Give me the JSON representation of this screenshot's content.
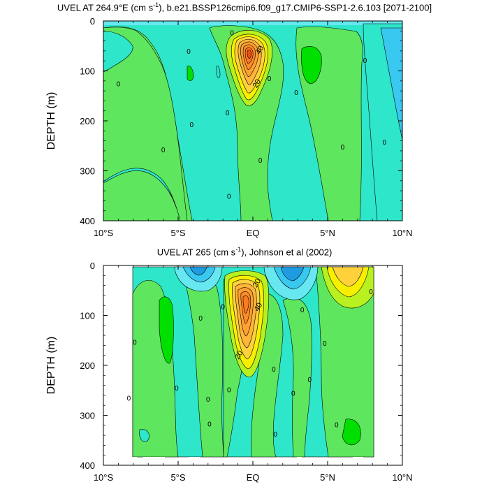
{
  "figure": {
    "panels": [
      {
        "title_pre": "UVEL AT 264.9°E (cm s",
        "title_sup": "-1",
        "title_post": "), b.e21.BSSP126cmip6.f09_g17.CMIP6-SSP1-2.6.103 [2071-2100]",
        "ylabel": "DEPTH (m)"
      },
      {
        "title_pre": "UVEL AT 265 (cm s",
        "title_sup": "-1",
        "title_post": "), Johnson et al (2002)",
        "ylabel": "DEPTH (m)"
      }
    ],
    "colors": {
      "strong_negative": "#1f9ce0",
      "negative": "#38c8f0",
      "weak_negative": "#67e8f0",
      "near_zero": "#2ee6c9",
      "weak_positive": "#5ee65e",
      "positive": "#00e000",
      "moderate": "#b8f020",
      "yellow": "#f6f000",
      "light_orange": "#ffd23c",
      "orange": "#ffa030",
      "dark_orange": "#ff7a20",
      "red": "#f04a18"
    }
  },
  "chart_data": [
    {
      "type": "heatmap",
      "title": "UVEL AT 264.9°E (cm s-1), b.e21.BSSP126cmip6.f09_g17.CMIP6-SSP1-2.6.103 [2071-2100]",
      "xlabel": "",
      "ylabel": "DEPTH (m)",
      "x_ticks": [
        "10°S",
        "5°S",
        "EQ",
        "5°N",
        "10°N"
      ],
      "x_tick_values": [
        -10,
        -5,
        0,
        5,
        10
      ],
      "y_ticks": [
        0,
        100,
        200,
        300,
        400
      ],
      "xlim": [
        -10,
        10
      ],
      "ylim": [
        0,
        400
      ],
      "y_inverted": true,
      "contour_labels": [
        {
          "text": "0",
          "x": -9.0,
          "y": 125
        },
        {
          "text": "0",
          "x": -4.3,
          "y": 60
        },
        {
          "text": "0",
          "x": -4.1,
          "y": 207
        },
        {
          "text": "0",
          "x": -6.0,
          "y": 257
        },
        {
          "text": "0",
          "x": -1.4,
          "y": 23
        },
        {
          "text": "0",
          "x": -1.7,
          "y": 183
        },
        {
          "text": "0",
          "x": -1.6,
          "y": 350
        },
        {
          "text": "0",
          "x": 1.1,
          "y": 115
        },
        {
          "text": "0",
          "x": 0.5,
          "y": 278
        },
        {
          "text": "0",
          "x": 2.9,
          "y": 143
        },
        {
          "text": "0",
          "x": 6.0,
          "y": 252
        },
        {
          "text": "0",
          "x": 7.5,
          "y": 78
        },
        {
          "text": "0",
          "x": 8.8,
          "y": 242
        },
        {
          "text": "20",
          "x": 0.4,
          "y": 122
        },
        {
          "text": "40",
          "x": 0.6,
          "y": 55
        }
      ]
    },
    {
      "type": "heatmap",
      "title": "UVEL AT 265 (cm s-1), Johnson et al (2002)",
      "xlabel": "",
      "ylabel": "DEPTH (m)",
      "x_ticks": [
        "10°S",
        "5°S",
        "EQ",
        "5°N",
        "10°N"
      ],
      "x_tick_values": [
        -10,
        -5,
        0,
        5,
        10
      ],
      "y_ticks": [
        0,
        100,
        200,
        300,
        400
      ],
      "xlim": [
        -10,
        10
      ],
      "ylim": [
        0,
        400
      ],
      "y_inverted": true,
      "contour_labels": [
        {
          "text": "0",
          "x": -8.3,
          "y": 265
        },
        {
          "text": "0",
          "x": -7.9,
          "y": 153
        },
        {
          "text": "0",
          "x": -5.1,
          "y": 245
        },
        {
          "text": "0",
          "x": -3.5,
          "y": 105
        },
        {
          "text": "0",
          "x": -3.0,
          "y": 267
        },
        {
          "text": "0",
          "x": -2.9,
          "y": 317
        },
        {
          "text": "0",
          "x": -2.0,
          "y": 82
        },
        {
          "text": "0",
          "x": -1.6,
          "y": 248
        },
        {
          "text": "0",
          "x": 1.4,
          "y": 207
        },
        {
          "text": "0",
          "x": 1.5,
          "y": 337
        },
        {
          "text": "0",
          "x": 2.7,
          "y": 255
        },
        {
          "text": "0",
          "x": 3.3,
          "y": 88
        },
        {
          "text": "0",
          "x": 3.8,
          "y": 228
        },
        {
          "text": "0",
          "x": 4.8,
          "y": 155
        },
        {
          "text": "0",
          "x": 5.6,
          "y": 318
        },
        {
          "text": "0",
          "x": 7.9,
          "y": 52
        },
        {
          "text": "20",
          "x": 0.4,
          "y": 32
        },
        {
          "text": "40",
          "x": 0.5,
          "y": 80
        },
        {
          "text": "20",
          "x": -0.8,
          "y": 176
        }
      ]
    }
  ]
}
